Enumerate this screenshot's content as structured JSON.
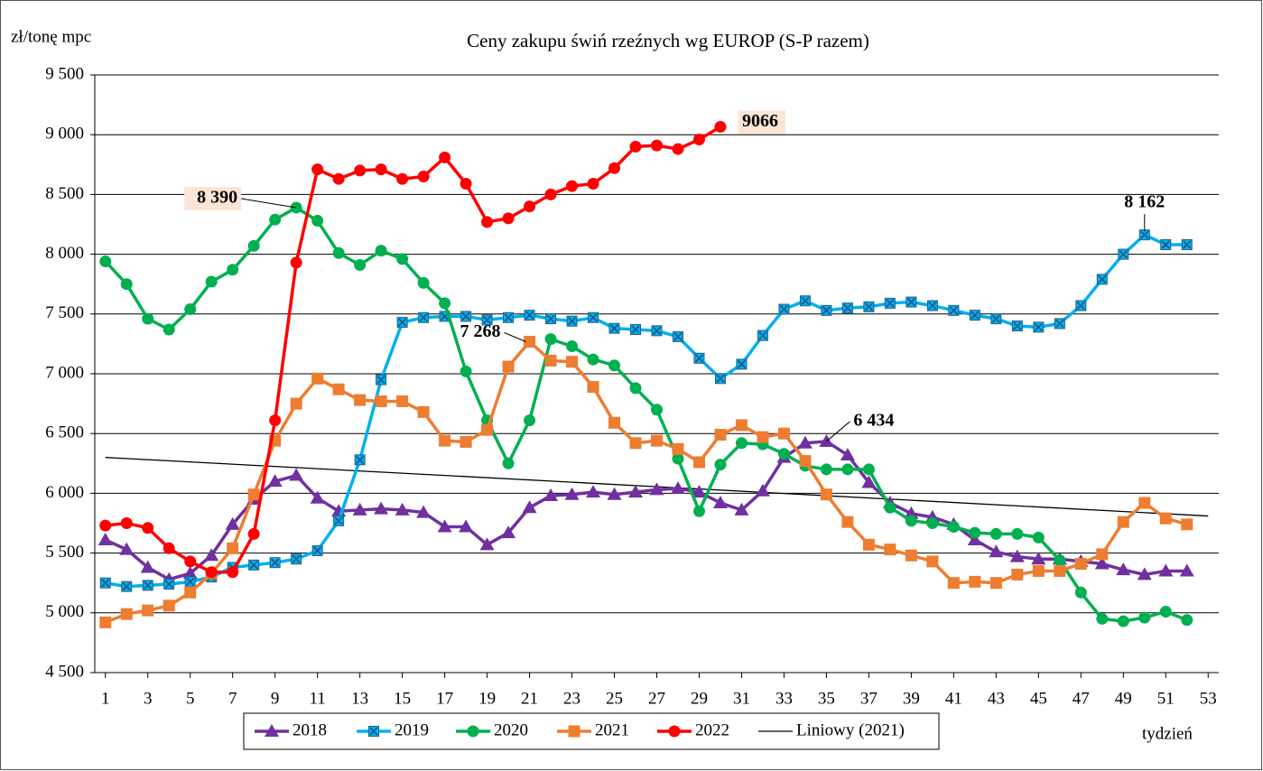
{
  "chart_data": {
    "type": "line",
    "title": "Ceny zakupu świń rzeźnych wg EUROP (S-P razem)",
    "y_label": "zł/tonę mpc",
    "x_label": "tydzień",
    "x": [
      1,
      2,
      3,
      4,
      5,
      6,
      7,
      8,
      9,
      10,
      11,
      12,
      13,
      14,
      15,
      16,
      17,
      18,
      19,
      20,
      21,
      22,
      23,
      24,
      25,
      26,
      27,
      28,
      29,
      30,
      31,
      32,
      33,
      34,
      35,
      36,
      37,
      38,
      39,
      40,
      41,
      42,
      43,
      44,
      45,
      46,
      47,
      48,
      49,
      50,
      51,
      52
    ],
    "xlim": [
      0.5,
      53.5
    ],
    "xticks": [
      1,
      3,
      5,
      7,
      9,
      11,
      13,
      15,
      17,
      19,
      21,
      23,
      25,
      27,
      29,
      31,
      33,
      35,
      37,
      39,
      41,
      43,
      45,
      47,
      49,
      51,
      53
    ],
    "ylim": [
      4500,
      9500
    ],
    "yticks": [
      {
        "value": 4500,
        "label": "4 500"
      },
      {
        "value": 5000,
        "label": "5 000"
      },
      {
        "value": 5500,
        "label": "5 500"
      },
      {
        "value": 6000,
        "label": "6 000"
      },
      {
        "value": 6500,
        "label": "6 500"
      },
      {
        "value": 7000,
        "label": "7 000"
      },
      {
        "value": 7500,
        "label": "7 500"
      },
      {
        "value": 8000,
        "label": "8 000"
      },
      {
        "value": 8500,
        "label": "8 500"
      },
      {
        "value": 9000,
        "label": "9 000"
      },
      {
        "value": 9500,
        "label": "9 500"
      }
    ],
    "grid": true,
    "series": [
      {
        "name": "2018",
        "color": "#7030a0",
        "marker": "triangle",
        "values": [
          5610,
          5530,
          5380,
          5280,
          5330,
          5480,
          5740,
          5950,
          6100,
          6150,
          5960,
          5850,
          5860,
          5870,
          5860,
          5840,
          5720,
          5720,
          5570,
          5670,
          5880,
          5980,
          5990,
          6010,
          5990,
          6010,
          6030,
          6040,
          6010,
          5920,
          5860,
          6020,
          6300,
          6420,
          6434,
          6320,
          6090,
          5920,
          5830,
          5800,
          5740,
          5610,
          5510,
          5470,
          5450,
          5450,
          5430,
          5410,
          5360,
          5320,
          5350,
          5350
        ],
        "value_labels": [
          null,
          null,
          null,
          null,
          null,
          null,
          null,
          null,
          null,
          null,
          null,
          null,
          null,
          null,
          null,
          null,
          null,
          null,
          null,
          null,
          null,
          null,
          null,
          null,
          null,
          null,
          null,
          null,
          null,
          null,
          null,
          null,
          null,
          null,
          "6 434",
          null,
          null,
          null,
          null,
          null,
          null,
          null,
          null,
          null,
          null,
          null,
          null,
          null,
          null,
          null,
          null,
          null
        ]
      },
      {
        "name": "2019",
        "color": "#00b0f0",
        "marker": "xsquare",
        "values": [
          5250,
          5220,
          5230,
          5240,
          5260,
          5300,
          5380,
          5400,
          5420,
          5450,
          5520,
          5770,
          6280,
          6950,
          7430,
          7470,
          7480,
          7480,
          7450,
          7470,
          7490,
          7460,
          7440,
          7470,
          7380,
          7370,
          7360,
          7310,
          7130,
          6960,
          7080,
          7320,
          7540,
          7610,
          7530,
          7550,
          7560,
          7590,
          7600,
          7570,
          7530,
          7490,
          7460,
          7400,
          7390,
          7420,
          7570,
          7790,
          8000,
          8162,
          8080,
          8080
        ],
        "value_labels": [
          null,
          null,
          null,
          null,
          null,
          null,
          null,
          null,
          null,
          null,
          null,
          null,
          null,
          null,
          null,
          null,
          null,
          null,
          null,
          null,
          null,
          null,
          null,
          null,
          null,
          null,
          null,
          null,
          null,
          null,
          null,
          null,
          null,
          null,
          null,
          null,
          null,
          null,
          null,
          null,
          null,
          null,
          null,
          null,
          null,
          null,
          null,
          null,
          null,
          "8 162",
          null,
          null
        ]
      },
      {
        "name": "2020",
        "color": "#00b050",
        "marker": "circle",
        "values": [
          7940,
          7750,
          7460,
          7370,
          7540,
          7770,
          7870,
          8070,
          8290,
          8390,
          8280,
          8010,
          7910,
          8030,
          7960,
          7760,
          7590,
          7020,
          6610,
          6250,
          6610,
          7290,
          7230,
          7120,
          7070,
          6880,
          6700,
          6290,
          5850,
          6240,
          6420,
          6410,
          6330,
          6230,
          6200,
          6200,
          6200,
          5880,
          5770,
          5750,
          5720,
          5670,
          5660,
          5660,
          5630,
          5440,
          5170,
          4950,
          4930,
          4960,
          5010,
          4940
        ],
        "value_labels": [
          null,
          null,
          null,
          null,
          null,
          null,
          null,
          null,
          null,
          "8 390",
          null,
          null,
          null,
          null,
          null,
          null,
          null,
          null,
          null,
          null,
          null,
          null,
          null,
          null,
          null,
          null,
          null,
          null,
          null,
          null,
          null,
          null,
          null,
          null,
          null,
          null,
          null,
          null,
          null,
          null,
          null,
          null,
          null,
          null,
          null,
          null,
          null,
          null,
          null,
          null,
          null,
          null
        ]
      },
      {
        "name": "2021",
        "color": "#ed7d31",
        "marker": "square",
        "values": [
          4920,
          4990,
          5020,
          5060,
          5170,
          5330,
          5540,
          5990,
          6440,
          6750,
          6960,
          6870,
          6780,
          6770,
          6770,
          6680,
          6440,
          6430,
          6530,
          7060,
          7268,
          7110,
          7100,
          6890,
          6590,
          6420,
          6440,
          6370,
          6260,
          6490,
          6570,
          6470,
          6500,
          6270,
          5990,
          5760,
          5570,
          5530,
          5480,
          5430,
          5250,
          5260,
          5250,
          5320,
          5350,
          5350,
          5410,
          5490,
          5760,
          5920,
          5790,
          5740
        ],
        "value_labels": [
          null,
          null,
          null,
          null,
          null,
          null,
          null,
          null,
          null,
          null,
          null,
          null,
          null,
          null,
          null,
          null,
          null,
          null,
          null,
          null,
          "7 268",
          null,
          null,
          null,
          null,
          null,
          null,
          null,
          null,
          null,
          null,
          null,
          null,
          null,
          null,
          null,
          null,
          null,
          null,
          null,
          null,
          null,
          null,
          null,
          null,
          null,
          null,
          null,
          null,
          null,
          null,
          null
        ]
      },
      {
        "name": "2022",
        "color": "#ff0000",
        "marker": "circle",
        "values": [
          5730,
          5750,
          5710,
          5540,
          5430,
          5340,
          5340,
          5660,
          6610,
          7930,
          8710,
          8630,
          8700,
          8710,
          8630,
          8650,
          8810,
          8590,
          8270,
          8300,
          8400,
          8500,
          8570,
          8590,
          8720,
          8900,
          8910,
          8880,
          8960,
          9066,
          null,
          null,
          null,
          null,
          null,
          null,
          null,
          null,
          null,
          null,
          null,
          null,
          null,
          null,
          null,
          null,
          null,
          null,
          null,
          null,
          null,
          null
        ],
        "value_labels": [
          null,
          null,
          null,
          null,
          null,
          null,
          null,
          null,
          null,
          null,
          null,
          null,
          null,
          null,
          null,
          null,
          null,
          null,
          null,
          null,
          null,
          null,
          null,
          null,
          null,
          null,
          null,
          null,
          null,
          "9066",
          null,
          null,
          null,
          null,
          null,
          null,
          null,
          null,
          null,
          null,
          null,
          null,
          null,
          null,
          null,
          null,
          null,
          null,
          null,
          null,
          null,
          null
        ]
      }
    ],
    "trend": {
      "name": "Liniowy (2021)",
      "color": "#000000",
      "x": [
        1,
        53
      ],
      "values": [
        6300,
        5810
      ]
    }
  }
}
